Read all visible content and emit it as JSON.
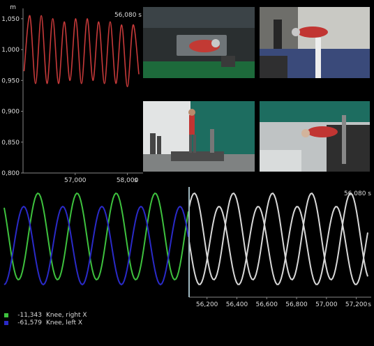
{
  "top_plot": {
    "unit": "m",
    "time_label": "56,080 s",
    "y_ticks": [
      "1,050",
      "1,000",
      "0,950",
      "0,900",
      "0,850",
      "0,800"
    ],
    "x_ticks": [
      "57,000",
      "58,000"
    ],
    "x_unit": "s",
    "color": "#c83a3a"
  },
  "bottom_plot": {
    "time_label": "56,080 s",
    "x_ticks": [
      "56,200",
      "56,400",
      "56,600",
      "56,800",
      "57,000",
      "57,200"
    ],
    "x_unit": "s",
    "cursor_color": "#9fb8c0"
  },
  "legend": [
    {
      "value": "-11,343",
      "label": "Knee, right X",
      "color": "#3ec23e"
    },
    {
      "value": "-61,579",
      "label": "Knee, left X",
      "color": "#2a2ac8"
    }
  ],
  "videos": [
    {
      "name": "overhead camera view"
    },
    {
      "name": "rear corridor camera view"
    },
    {
      "name": "side treadmill camera view"
    },
    {
      "name": "ceiling camera view"
    }
  ],
  "chart_data": [
    {
      "type": "line",
      "title": "",
      "ylabel": "m",
      "xlabel": "s",
      "ylim": [
        0.8,
        1.06
      ],
      "xlim": [
        56.0,
        58.3
      ],
      "grid": false,
      "series": [
        {
          "values_description_free": true,
          "x": [
            56.02,
            56.13,
            56.24,
            56.35,
            56.46,
            56.57,
            56.68,
            56.79,
            56.9,
            57.01,
            57.12,
            57.23,
            57.34,
            57.45,
            57.56,
            57.67,
            57.78,
            57.89,
            58.0,
            58.11,
            58.22
          ],
          "y": [
            0.965,
            1.055,
            0.945,
            1.055,
            0.945,
            1.05,
            0.945,
            1.045,
            0.95,
            1.05,
            0.945,
            1.05,
            0.95,
            1.045,
            0.945,
            1.045,
            0.945,
            1.04,
            0.94,
            1.04,
            0.96
          ]
        }
      ]
    },
    {
      "type": "line",
      "title": "",
      "xlabel": "s",
      "xlim": [
        56.08,
        57.3
      ],
      "grid": false,
      "series": [
        {
          "name": "Knee, right X",
          "color": "#3ec23e"
        },
        {
          "name": "Knee, left X",
          "color": "#2a2ac8"
        }
      ]
    }
  ]
}
